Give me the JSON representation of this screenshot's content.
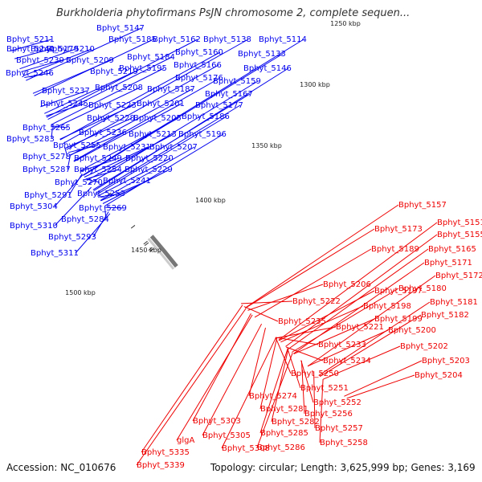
{
  "header": {
    "title": "Burkholderia phytofirmans PsJN chromosome 2, complete sequen..."
  },
  "footer": {
    "accession": "Accession: NC_010676",
    "summary": "Topology: circular; Length: 3,625,999 bp; Genes: 3,169"
  },
  "colors": {
    "forward": "#0000ee",
    "reverse": "#ee0000",
    "backbone": "#777777",
    "gc_skew": "#118811"
  },
  "ticks": [
    {
      "label": "1250 kbp",
      "kbp": 1250
    },
    {
      "label": "1300 kbp",
      "kbp": 1300
    },
    {
      "label": "1350 kbp",
      "kbp": 1350
    },
    {
      "label": "1400 kbp",
      "kbp": 1400
    },
    {
      "label": "1450 kbp",
      "kbp": 1450
    },
    {
      "label": "1500 kbp",
      "kbp": 1500
    }
  ],
  "genes_forward": [
    "Bphyt_5211",
    "Bphyt_5179",
    "Bphyt_5147",
    "Bphyt_5240",
    "Bphyt_5210",
    "Bphyt_5185",
    "Bphyt_5162",
    "Bphyt_5138",
    "Bphyt_5114",
    "Bphyt_5239",
    "Bphyt_5209",
    "Bphyt_5184",
    "Bphyt_5160",
    "Bphyt_5133",
    "Bphyt_5246",
    "Bphyt_5219",
    "Bphyt_5195",
    "Bphyt_5166",
    "Bphyt_5146",
    "Bphyt_5176",
    "Bphyt_5159",
    "Bphyt_5237",
    "Bphyt_5208",
    "Bphyt_5187",
    "Bphyt_5167",
    "Bphyt_5245",
    "Bphyt_5223",
    "Bphyt_5201",
    "Bphyt_5177",
    "Bphyt_5228",
    "Bphyt_5205",
    "Bphyt_5186",
    "Bphyt_5265",
    "Bphyt_5236",
    "Bphyt_5213",
    "Bphyt_5196",
    "Bphyt_5283",
    "Bphyt_5255",
    "Bphyt_5231",
    "Bphyt_5207",
    "Bphyt_5278",
    "Bphyt_5249",
    "Bphyt_5220",
    "Bphyt_5287",
    "Bphyt_5254",
    "Bphyt_5229",
    "Bphyt_5270",
    "Bphyt_5241",
    "Bphyt_5291",
    "Bphyt_5253",
    "Bphyt_5304",
    "Bphyt_5269",
    "Bphyt_5284",
    "Bphyt_5310",
    "Bphyt_5293",
    "Bphyt_5311"
  ],
  "genes_reverse": [
    "Bphyt_5157",
    "Bphyt_5151",
    "Bphyt_5173",
    "Bphyt_5155",
    "Bphyt_5165",
    "Bphyt_5189",
    "Bphyt_5171",
    "Bphyt_5172",
    "Bphyt_5206",
    "Bphyt_5180",
    "Bphyt_5197",
    "Bphyt_5198",
    "Bphyt_5181",
    "Bphyt_5182",
    "Bphyt_5222",
    "Bphyt_5199",
    "Bphyt_5221",
    "Bphyt_5200",
    "Bphyt_5235",
    "Bphyt_5202",
    "Bphyt_5233",
    "Bphyt_5203",
    "Bphyt_5234",
    "Bphyt_5204",
    "Bphyt_5250",
    "Bphyt_5251",
    "Bphyt_5274",
    "Bphyt_5252",
    "Bphyt_5281",
    "Bphyt_5256",
    "Bphyt_5282",
    "Bphyt_5257",
    "Bphyt_5303",
    "Bphyt_5285",
    "Bphyt_5258",
    "Bphyt_5305",
    "Bphyt_5286",
    "glgA",
    "Bphyt_5308",
    "Bphyt_5335",
    "Bphyt_5339"
  ]
}
